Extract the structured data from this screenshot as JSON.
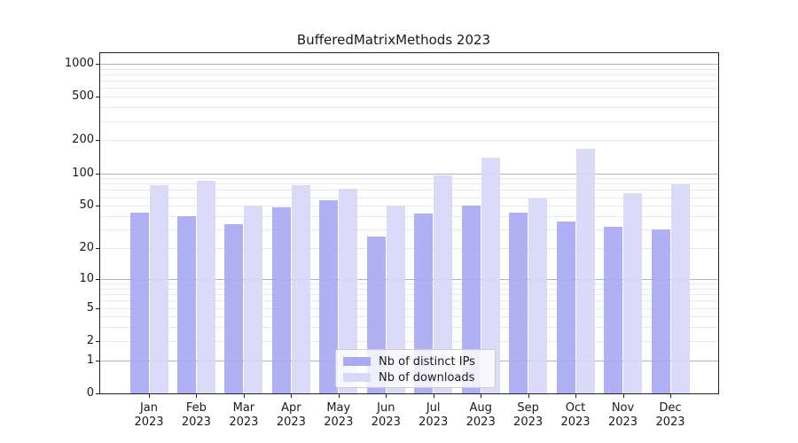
{
  "chart_data": {
    "type": "bar",
    "title": "BufferedMatrixMethods 2023",
    "categories": [
      "Jan 2023",
      "Feb 2023",
      "Mar 2023",
      "Apr 2023",
      "May 2023",
      "Jun 2023",
      "Jul 2023",
      "Aug 2023",
      "Sep 2023",
      "Oct 2023",
      "Nov 2023",
      "Dec 2023"
    ],
    "series": [
      {
        "name": "Nb of distinct IPs",
        "color": "#a9a9f4",
        "values": [
          43,
          40,
          34,
          48,
          56,
          26,
          42,
          50,
          43,
          36,
          32,
          30
        ]
      },
      {
        "name": "Nb of downloads",
        "color": "#d8d8f8",
        "values": [
          78,
          85,
          50,
          78,
          72,
          50,
          96,
          139,
          58,
          168,
          65,
          79
        ]
      }
    ],
    "yscale": "log1p",
    "ylim": [
      0,
      1280
    ],
    "yticks": [
      "0",
      "1",
      "2",
      "5",
      "10",
      "20",
      "50",
      "100",
      "200",
      "500",
      "1000"
    ],
    "xlabel": "",
    "ylabel": "",
    "grid": "major at 1,10,100,1000; minor at 2-9 per decade",
    "legend_position": "bottom-center"
  },
  "colors": {
    "background": "#ffffff",
    "axis": "#222222",
    "text": "#1a1a1a",
    "grid_major": "#b3b3b3",
    "grid_minor": "#e9e9e9",
    "legend_border": "#cccccc",
    "legend_background": "rgba(255,255,255,0.8)"
  }
}
